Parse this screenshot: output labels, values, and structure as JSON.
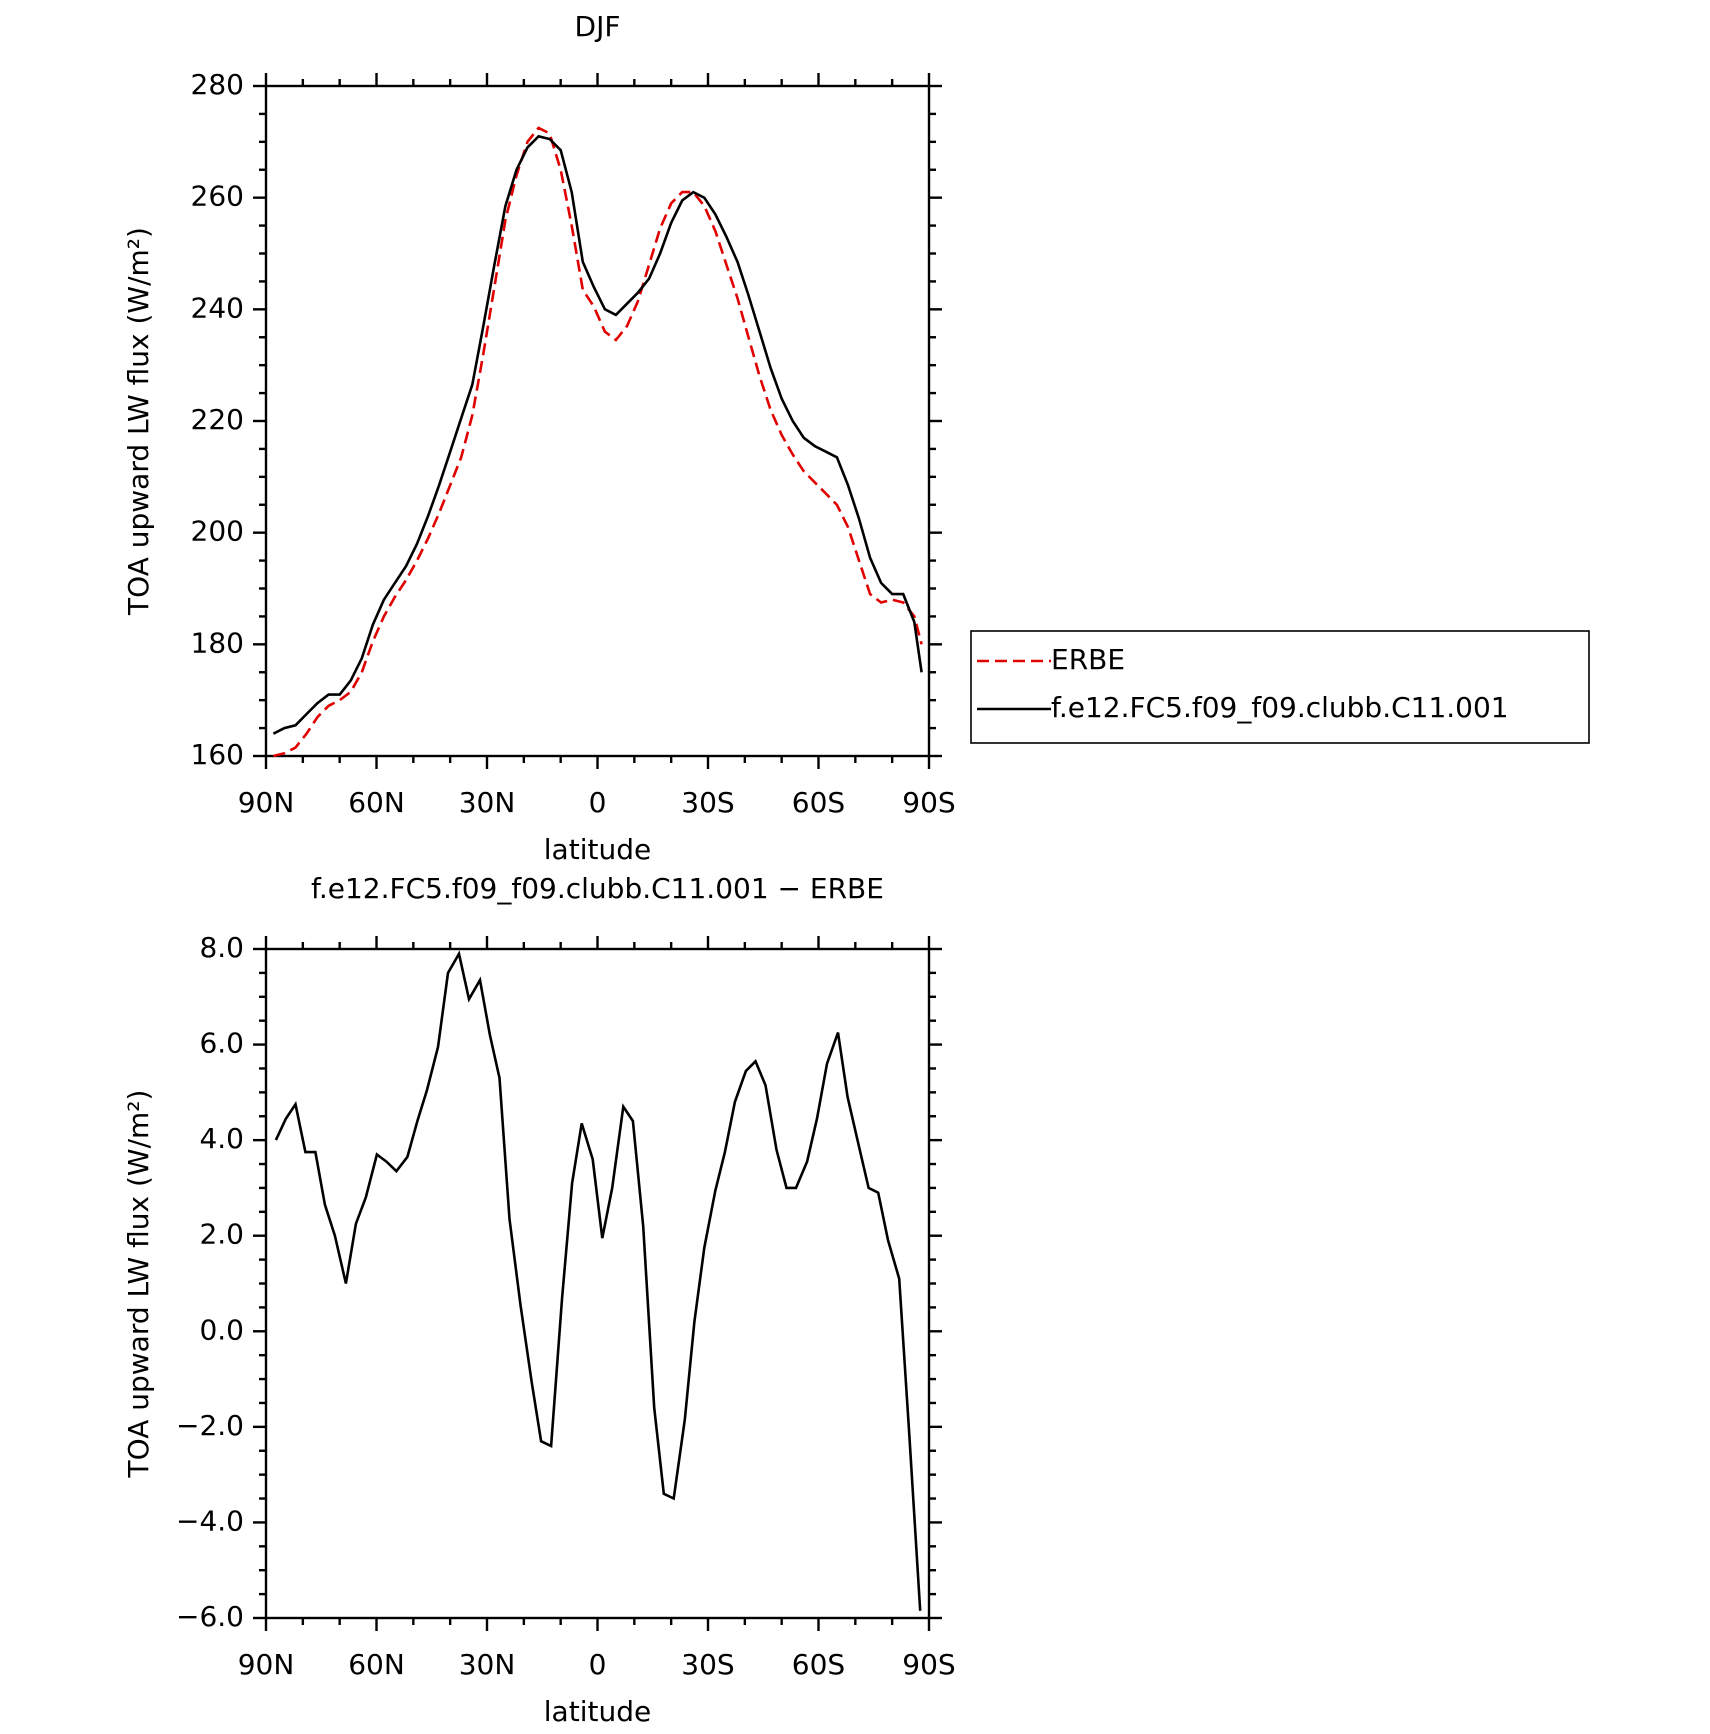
{
  "chart_data": [
    {
      "type": "line",
      "title": "DJF",
      "xlabel": "latitude",
      "ylabel": "TOA upward LW flux (W/m²)",
      "x": [
        88,
        85,
        82,
        79,
        76,
        73,
        70,
        67,
        64,
        61,
        58,
        55,
        52,
        49,
        46,
        43,
        40,
        37,
        34,
        31,
        28,
        25,
        22,
        19,
        16,
        13,
        10,
        7,
        4,
        1,
        -2,
        -5,
        -8,
        -11,
        -14,
        -17,
        -20,
        -23,
        -26,
        -29,
        -32,
        -35,
        -38,
        -41,
        -44,
        -47,
        -50,
        -53,
        -56,
        -59,
        -62,
        -65,
        -68,
        -71,
        -74,
        -77,
        -80,
        -83,
        -86,
        -88
      ],
      "series": [
        {
          "name": "ERBE",
          "color": "#e00000",
          "style": "dashed",
          "values": [
            160,
            160.5,
            161.5,
            164,
            167,
            169,
            170,
            171.5,
            175,
            180.5,
            185,
            188.5,
            191.5,
            195,
            199,
            203.5,
            208.5,
            213.5,
            221,
            232,
            244,
            256,
            264,
            270,
            272.5,
            271.5,
            265,
            255,
            243.5,
            240.5,
            236,
            234.5,
            237,
            241.5,
            248,
            254.5,
            259,
            261,
            261,
            258.5,
            254,
            248,
            242,
            235,
            228,
            222,
            217.5,
            214,
            211,
            209,
            207,
            205,
            201,
            195,
            189,
            187.5,
            188,
            187.5,
            185,
            180
          ]
        },
        {
          "name": "f.e12.FC5.f09_f09.clubb.C11.001",
          "color": "#000000",
          "style": "solid",
          "values": [
            164,
            165,
            165.5,
            167.5,
            169.5,
            171,
            171,
            173.5,
            177.5,
            183.5,
            188,
            191,
            194,
            198,
            203,
            208.5,
            214.5,
            220.5,
            226.5,
            237,
            248,
            258.5,
            265,
            269,
            271,
            270.5,
            268.5,
            261,
            248.5,
            244,
            240,
            239,
            241,
            243,
            245.5,
            250,
            255.5,
            259.5,
            261,
            260,
            257,
            253,
            248.5,
            242.5,
            236,
            229.5,
            224,
            220,
            217,
            215.5,
            214.5,
            213.5,
            208.5,
            202.5,
            195.5,
            191,
            189,
            189,
            184,
            175
          ]
        }
      ],
      "xlim": [
        90,
        -90
      ],
      "xticks": [
        {
          "value": 90,
          "label": "90N"
        },
        {
          "value": 60,
          "label": "60N"
        },
        {
          "value": 30,
          "label": "30N"
        },
        0,
        {
          "value": -30,
          "label": "30S"
        },
        {
          "value": -60,
          "label": "60S"
        },
        {
          "value": -90,
          "label": "90S"
        }
      ],
      "ylim": [
        160,
        280
      ],
      "yticks": [
        160,
        180,
        200,
        220,
        240,
        260,
        280
      ],
      "legend": "right"
    },
    {
      "type": "line",
      "title": "f.e12.FC5.f09_f09.clubb.C11.001 − ERBE",
      "xlabel": "latitude",
      "ylabel": "TOA upward LW flux (W/m²)",
      "x": [
        87.3,
        84.6,
        82,
        79.3,
        76.6,
        74,
        71.3,
        68.3,
        65.6,
        62.9,
        59.9,
        57.3,
        54.6,
        51.6,
        48.9,
        46.3,
        43.3,
        40.6,
        37.6,
        34.9,
        31.9,
        29.2,
        26.6,
        23.9,
        20.9,
        17.9,
        15.3,
        12.6,
        9.6,
        6.9,
        4.3,
        1.3,
        -1.3,
        -4,
        -7,
        -9.6,
        -12.4,
        -15.4,
        -18,
        -20.7,
        -23.7,
        -26.3,
        -29,
        -32,
        -34.6,
        -37.3,
        -40.3,
        -42.9,
        -45.6,
        -48.6,
        -51.3,
        -53.9,
        -56.9,
        -59.6,
        -62.3,
        -65.3,
        -67.9,
        -70.6,
        -73.6,
        -76.2,
        -78.9,
        -81.9,
        -84.6,
        -87.6
      ],
      "series": [
        {
          "color": "#000000",
          "style": "solid",
          "values": [
            4,
            4.45,
            4.75,
            3.75,
            3.75,
            2.65,
            2,
            1,
            2.25,
            2.8,
            3.7,
            3.55,
            3.35,
            3.65,
            4.4,
            5.05,
            5.95,
            7.5,
            7.9,
            6.95,
            7.35,
            6.2,
            5.3,
            2.35,
            0.55,
            -1.05,
            -2.3,
            -2.4,
            0.7,
            3.1,
            4.35,
            3.6,
            1.95,
            3,
            4.7,
            4.4,
            2.2,
            -1.6,
            -3.4,
            -3.5,
            -1.85,
            0.2,
            1.75,
            2.95,
            3.75,
            4.8,
            5.45,
            5.65,
            5.15,
            3.8,
            3,
            3,
            3.55,
            4.45,
            5.6,
            6.25,
            4.9,
            4,
            3,
            2.9,
            1.9,
            1.1,
            -2.1,
            -5.85
          ]
        }
      ],
      "xlim": [
        90,
        -90
      ],
      "xticks": [
        {
          "value": 90,
          "label": "90N"
        },
        {
          "value": 60,
          "label": "60N"
        },
        {
          "value": 30,
          "label": "30N"
        },
        0,
        {
          "value": -30,
          "label": "30S"
        },
        {
          "value": -60,
          "label": "60S"
        },
        {
          "value": -90,
          "label": "90S"
        }
      ],
      "ylim": [
        -6,
        8
      ],
      "yticks": [
        {
          "value": -6,
          "label": "−6.0"
        },
        {
          "value": -4,
          "label": "−4.0"
        },
        {
          "value": -2,
          "label": "−2.0"
        },
        {
          "value": 0,
          "label": "0.0"
        },
        {
          "value": 2,
          "label": "2.0"
        },
        {
          "value": 4,
          "label": "4.0"
        },
        {
          "value": 6,
          "label": "6.0"
        },
        {
          "value": 8,
          "label": "8.0"
        }
      ]
    }
  ]
}
